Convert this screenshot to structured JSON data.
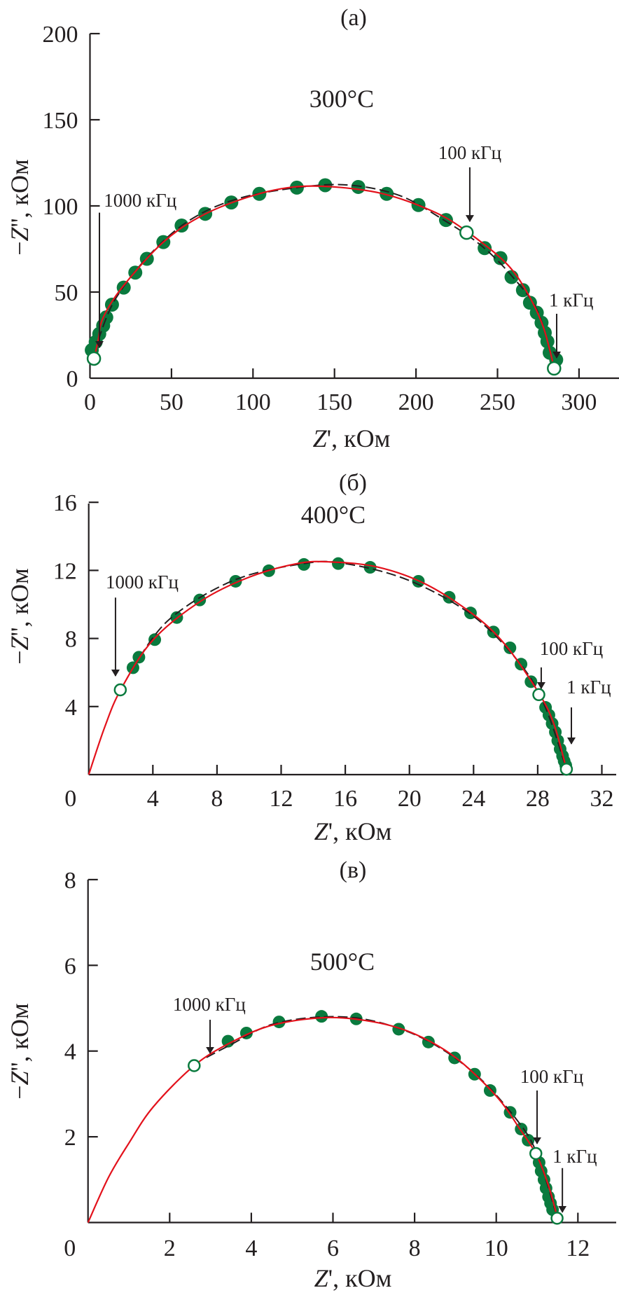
{
  "chart_data": [
    {
      "type": "scatter",
      "panel_label": "(a)",
      "temperature": "300°C",
      "xlabel": {
        "var": "Z",
        "suffix": "', кОм"
      },
      "ylabel": {
        "prefix": "−",
        "var": "Z",
        "suffix": "'', кОм"
      },
      "xlim": [
        0,
        324
      ],
      "ylim": [
        0,
        200
      ],
      "xticks": [
        0,
        50,
        100,
        150,
        200,
        250,
        300
      ],
      "yticks": [
        0,
        50,
        100,
        150,
        200
      ],
      "grid": false,
      "colors": {
        "points": "#0a7a3e",
        "fit": "#e3111b",
        "fit_dashed": "#231f20"
      },
      "points_filled": [
        [
          1.1,
          16.3
        ],
        [
          3.5,
          21
        ],
        [
          5.7,
          25.7
        ],
        [
          8.1,
          30.5
        ],
        [
          10,
          35.3
        ],
        [
          13.5,
          42.7
        ],
        [
          20.7,
          52.6
        ],
        [
          27.8,
          61.3
        ],
        [
          34.9,
          69.3
        ],
        [
          45,
          79
        ],
        [
          56.2,
          88.6
        ],
        [
          70.7,
          95.4
        ],
        [
          86.7,
          102
        ],
        [
          103.9,
          107
        ],
        [
          126.9,
          110.6
        ],
        [
          144.3,
          112
        ],
        [
          164.6,
          111
        ],
        [
          182,
          107
        ],
        [
          201.5,
          100.5
        ],
        [
          218.4,
          91.8
        ],
        [
          242.1,
          75.5
        ],
        [
          251.8,
          69.7
        ],
        [
          258.6,
          58.7
        ],
        [
          265.6,
          51.1
        ],
        [
          269.9,
          43.8
        ],
        [
          274.1,
          38
        ],
        [
          277,
          32.2
        ],
        [
          279,
          26.4
        ],
        [
          280.6,
          21.3
        ],
        [
          282,
          14.8
        ],
        [
          286,
          10.7
        ]
      ],
      "points_open": [
        [
          2.4,
          11.4
        ],
        [
          231,
          84.5
        ],
        [
          284.7,
          5.7
        ]
      ],
      "fit_red": [
        [
          2,
          9
        ],
        [
          5,
          22
        ],
        [
          8,
          35
        ],
        [
          20,
          53
        ],
        [
          45,
          79
        ],
        [
          70,
          95
        ],
        [
          100,
          106
        ],
        [
          125,
          111
        ],
        [
          150,
          111
        ],
        [
          180,
          107
        ],
        [
          210,
          97
        ],
        [
          230,
          86
        ],
        [
          255,
          67
        ],
        [
          268,
          50
        ],
        [
          278,
          30
        ],
        [
          285,
          5
        ]
      ],
      "fit_dashed": [
        [
          5,
          22
        ],
        [
          15,
          45
        ],
        [
          35,
          70
        ],
        [
          60,
          91
        ],
        [
          90,
          104
        ],
        [
          130,
          111
        ],
        [
          160,
          112
        ],
        [
          190,
          106
        ],
        [
          215,
          93
        ],
        [
          240,
          77
        ],
        [
          260,
          58
        ],
        [
          275,
          38
        ],
        [
          285,
          5
        ]
      ],
      "annotations": [
        {
          "text": "1000 кГц",
          "text_at": [
            8.5,
            99.6
          ],
          "anchor": "start",
          "tail": [
            5.8,
            96.1
          ],
          "tip": [
            5.8,
            17.9
          ]
        },
        {
          "text": "100 кГц",
          "text_at": [
            233,
            127.3
          ],
          "anchor": "middle",
          "tail": [
            233,
            122.4
          ],
          "tip": [
            233,
            91
          ]
        },
        {
          "text": "1 кГц",
          "text_at": [
            295.2,
            41.7
          ],
          "anchor": "middle",
          "tail": [
            286.3,
            37.4
          ],
          "tip": [
            286.3,
            11.8
          ]
        }
      ]
    },
    {
      "type": "scatter",
      "panel_label": "(б)",
      "temperature": "400°C",
      "xlabel": {
        "var": "Z",
        "suffix": "', кОм"
      },
      "ylabel": {
        "prefix": "−",
        "var": "Z",
        "suffix": "'', кОм"
      },
      "xlim": [
        0,
        33
      ],
      "ylim": [
        0,
        16
      ],
      "xticks": [
        0,
        4,
        8,
        12,
        16,
        20,
        24,
        28,
        32
      ],
      "yticks": [
        4,
        8,
        12,
        16
      ],
      "grid": false,
      "colors": {
        "points": "#0a7a3e",
        "fit": "#e3111b",
        "fit_dashed": "#231f20"
      },
      "points_filled": [
        [
          2.76,
          6.28
        ],
        [
          3.13,
          6.9
        ],
        [
          4.12,
          7.93
        ],
        [
          5.49,
          9.23
        ],
        [
          6.92,
          10.26
        ],
        [
          9.16,
          11.36
        ],
        [
          11.23,
          11.98
        ],
        [
          13.42,
          12.35
        ],
        [
          15.56,
          12.4
        ],
        [
          17.55,
          12.18
        ],
        [
          20.56,
          11.36
        ],
        [
          22.48,
          10.42
        ],
        [
          23.81,
          9.5
        ],
        [
          25.24,
          8.38
        ],
        [
          26.27,
          7.45
        ],
        [
          26.96,
          6.49
        ],
        [
          27.58,
          5.46
        ],
        [
          28.49,
          3.95
        ],
        [
          28.7,
          3.5
        ],
        [
          28.9,
          3.0
        ],
        [
          29.1,
          2.5
        ],
        [
          29.25,
          2.0
        ],
        [
          29.4,
          1.5
        ],
        [
          29.55,
          1.1
        ],
        [
          29.65,
          0.8
        ],
        [
          29.75,
          0.55
        ]
      ],
      "points_open": [
        [
          1.97,
          4.98
        ],
        [
          28.07,
          4.7
        ],
        [
          29.79,
          0.32
        ]
      ],
      "fit_red": [
        [
          0,
          0
        ],
        [
          1,
          2.8
        ],
        [
          2,
          5
        ],
        [
          4,
          7.9
        ],
        [
          7,
          10.2
        ],
        [
          10,
          11.6
        ],
        [
          13,
          12.4
        ],
        [
          15,
          12.5
        ],
        [
          18,
          12.2
        ],
        [
          21,
          11.2
        ],
        [
          24,
          9.4
        ],
        [
          26,
          7.6
        ],
        [
          28,
          4.9
        ],
        [
          29,
          3.0
        ],
        [
          29.8,
          0.3
        ]
      ],
      "fit_dashed": [
        [
          2.7,
          6.2
        ],
        [
          5,
          9.1
        ],
        [
          9,
          11.4
        ],
        [
          13.4,
          12.4
        ],
        [
          16,
          12.4
        ],
        [
          20,
          11.4
        ],
        [
          24,
          9.3
        ],
        [
          27,
          6.4
        ],
        [
          28.5,
          3.9
        ],
        [
          29.8,
          0.3
        ]
      ],
      "annotations": [
        {
          "text": "1000 кГц",
          "text_at": [
            3.33,
            10.95
          ],
          "anchor": "middle",
          "tail": [
            1.67,
            10.4
          ],
          "tip": [
            1.67,
            5.8
          ]
        },
        {
          "text": "100 кГц",
          "text_at": [
            30.1,
            7.04
          ],
          "anchor": "middle",
          "tail": [
            28.22,
            6.3
          ],
          "tip": [
            28.22,
            5.06
          ]
        },
        {
          "text": "1 кГц",
          "text_at": [
            29.8,
            4.77
          ],
          "anchor": "start",
          "tail": [
            30.1,
            3.95
          ],
          "tip": [
            30.1,
            1.81
          ]
        }
      ]
    },
    {
      "type": "scatter",
      "panel_label": "(в)",
      "temperature": "500°C",
      "xlabel": {
        "var": "Z",
        "suffix": "', кОм"
      },
      "ylabel": {
        "prefix": "−",
        "var": "Z",
        "suffix": "'', кОм"
      },
      "xlim": [
        0,
        12.9
      ],
      "ylim": [
        0,
        8
      ],
      "xticks": [
        0,
        2,
        4,
        6,
        8,
        10,
        12
      ],
      "yticks": [
        2,
        4,
        6,
        8
      ],
      "grid": false,
      "colors": {
        "points": "#0a7a3e",
        "fit": "#e3111b",
        "fit_dashed": "#231f20"
      },
      "points_filled": [
        [
          3.43,
          4.23
        ],
        [
          3.88,
          4.42
        ],
        [
          4.68,
          4.68
        ],
        [
          5.72,
          4.81
        ],
        [
          6.57,
          4.75
        ],
        [
          7.61,
          4.51
        ],
        [
          8.34,
          4.21
        ],
        [
          8.98,
          3.84
        ],
        [
          9.47,
          3.46
        ],
        [
          9.85,
          3.08
        ],
        [
          10.34,
          2.57
        ],
        [
          10.61,
          2.18
        ],
        [
          10.78,
          1.92
        ],
        [
          11.05,
          1.4
        ],
        [
          11.1,
          1.2
        ],
        [
          11.17,
          1.0
        ],
        [
          11.22,
          0.8
        ],
        [
          11.28,
          0.6
        ],
        [
          11.33,
          0.45
        ],
        [
          11.38,
          0.3
        ]
      ],
      "points_open": [
        [
          2.6,
          3.66
        ],
        [
          10.97,
          1.61
        ],
        [
          11.49,
          0.1
        ]
      ],
      "fit_red": [
        [
          0,
          0
        ],
        [
          0.5,
          1.05
        ],
        [
          1,
          1.85
        ],
        [
          1.6,
          2.7
        ],
        [
          2.6,
          3.66
        ],
        [
          3.5,
          4.2
        ],
        [
          4.5,
          4.6
        ],
        [
          5.8,
          4.78
        ],
        [
          7,
          4.68
        ],
        [
          8,
          4.4
        ],
        [
          9,
          3.85
        ],
        [
          10,
          2.95
        ],
        [
          10.6,
          2.15
        ],
        [
          11,
          1.55
        ],
        [
          11.3,
          0.8
        ],
        [
          11.5,
          0.1
        ]
      ],
      "fit_dashed": [
        [
          2.9,
          3.85
        ],
        [
          3.5,
          4.15
        ],
        [
          4.5,
          4.62
        ],
        [
          5.8,
          4.8
        ],
        [
          7,
          4.7
        ],
        [
          8.3,
          4.25
        ],
        [
          9.5,
          3.45
        ],
        [
          10.5,
          2.4
        ],
        [
          11,
          1.6
        ],
        [
          11.5,
          0.1
        ]
      ],
      "annotations": [
        {
          "text": "1000 кГц",
          "text_at": [
            2.97,
            4.94
          ],
          "anchor": "middle",
          "tail": [
            2.99,
            4.73
          ],
          "tip": [
            2.99,
            3.95
          ]
        },
        {
          "text": "100 кГц",
          "text_at": [
            11.36,
            3.26
          ],
          "anchor": "middle",
          "tail": [
            11.0,
            3.08
          ],
          "tip": [
            11.0,
            1.84
          ]
        },
        {
          "text": "1 кГц",
          "text_at": [
            11.38,
            1.4
          ],
          "anchor": "start",
          "tail": [
            11.62,
            1.27
          ],
          "tip": [
            11.62,
            0.24
          ]
        }
      ]
    }
  ]
}
